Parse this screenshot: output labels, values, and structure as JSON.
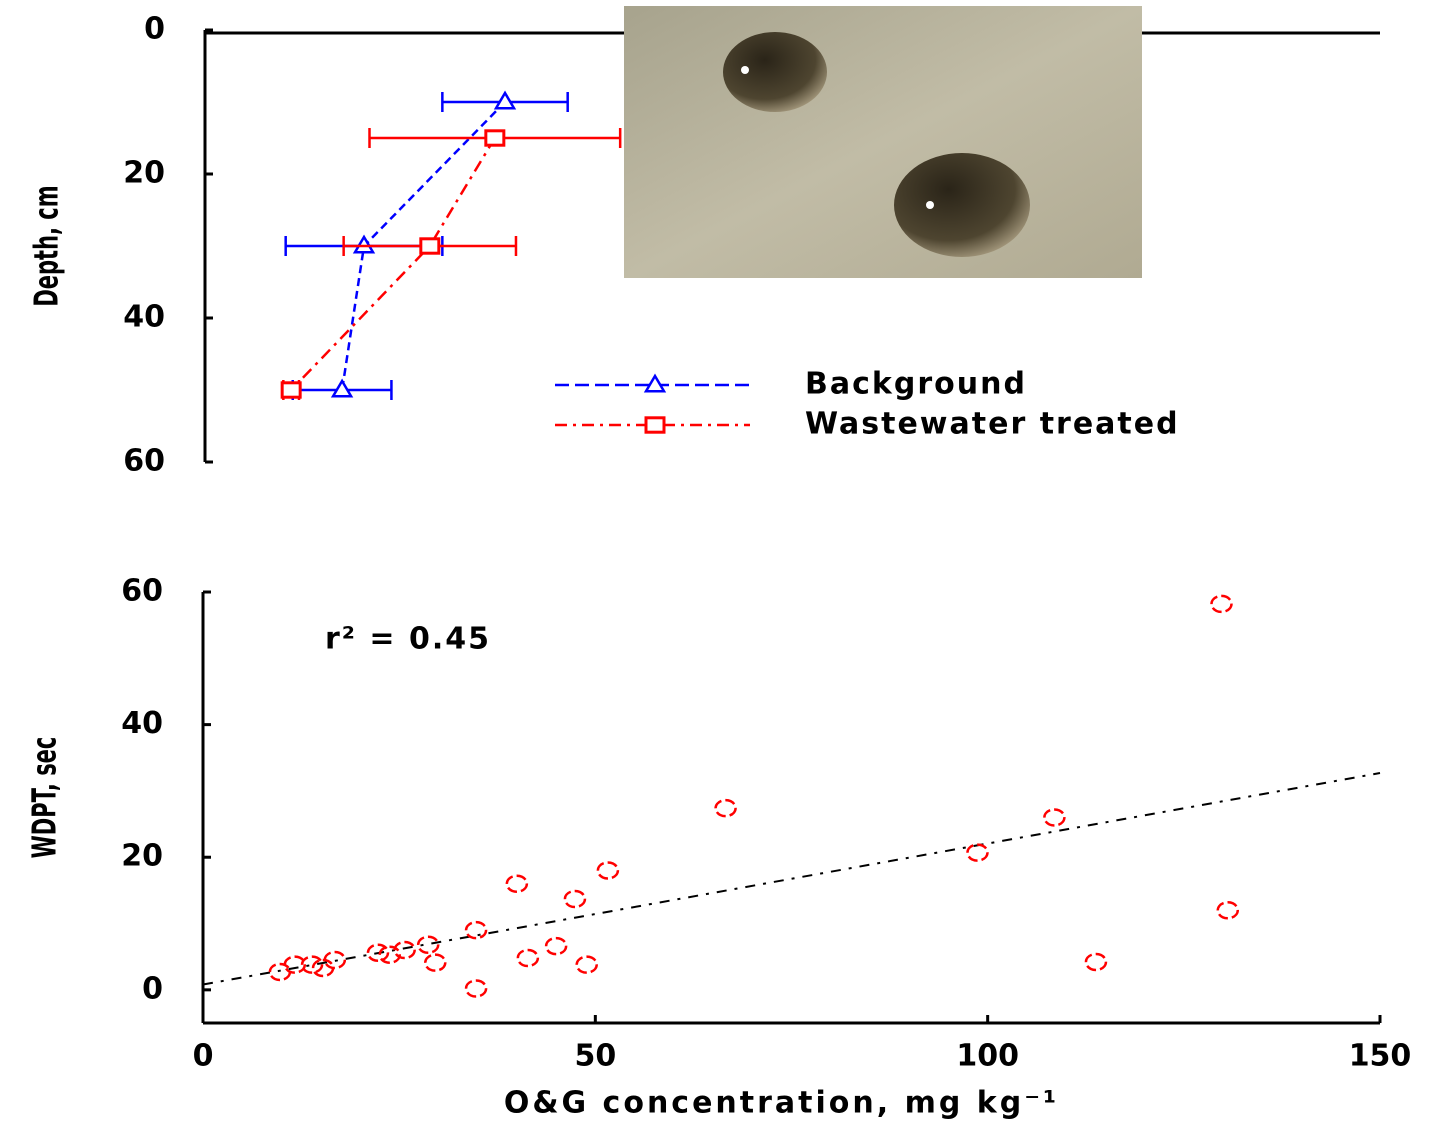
{
  "chart_data": [
    {
      "type": "errorbar-profile",
      "y_label": "Depth, cm",
      "xlim": [
        0,
        150
      ],
      "ylim": [
        0,
        60
      ],
      "y_reversed": true,
      "yticks": [
        0,
        20,
        40,
        60
      ],
      "series": [
        {
          "name": "Background",
          "color": "#0000ff",
          "marker": "triangle",
          "x": [
            38.3,
            20.3,
            17.5
          ],
          "values": [
            10,
            30,
            50
          ],
          "x_errors": [
            8,
            10,
            6.3
          ]
        },
        {
          "name": "Wastewater treated",
          "color": "#ff0000",
          "marker": "square",
          "x": [
            37,
            28.7,
            11
          ],
          "values": [
            15,
            30,
            50
          ],
          "x_errors": [
            16,
            11,
            1
          ]
        }
      ]
    },
    {
      "type": "scatter",
      "x_label": "O&G concentration, mg kg⁻¹",
      "y_label": "WDPT, sec",
      "annotation": "r² = 0.45",
      "xlim": [
        0,
        150
      ],
      "xticks": [
        0,
        50,
        100,
        150
      ],
      "ylim": [
        -5,
        60
      ],
      "yticks": [
        0,
        20,
        40,
        60
      ],
      "color": "#ff0000",
      "x": [
        129.8,
        66.6,
        108.5,
        98.7,
        51.6,
        40,
        47.4,
        130.6,
        34.8,
        113.8,
        45,
        41.4,
        48.9,
        29.6,
        34.8,
        28.7,
        25.7,
        23.8,
        22.3,
        16.8,
        15.3,
        13.9,
        11.7,
        9.8
      ],
      "values": [
        58.2,
        27.4,
        26,
        20.7,
        18,
        16,
        13.7,
        12,
        9,
        4.2,
        6.6,
        4.8,
        3.8,
        4.1,
        0.2,
        6.8,
        6,
        5.3,
        5.6,
        4.5,
        3.3,
        3.8,
        3.8,
        2.7
      ],
      "trendline": {
        "x": [
          0,
          150
        ],
        "values": [
          0.8,
          32.7
        ]
      }
    }
  ]
}
